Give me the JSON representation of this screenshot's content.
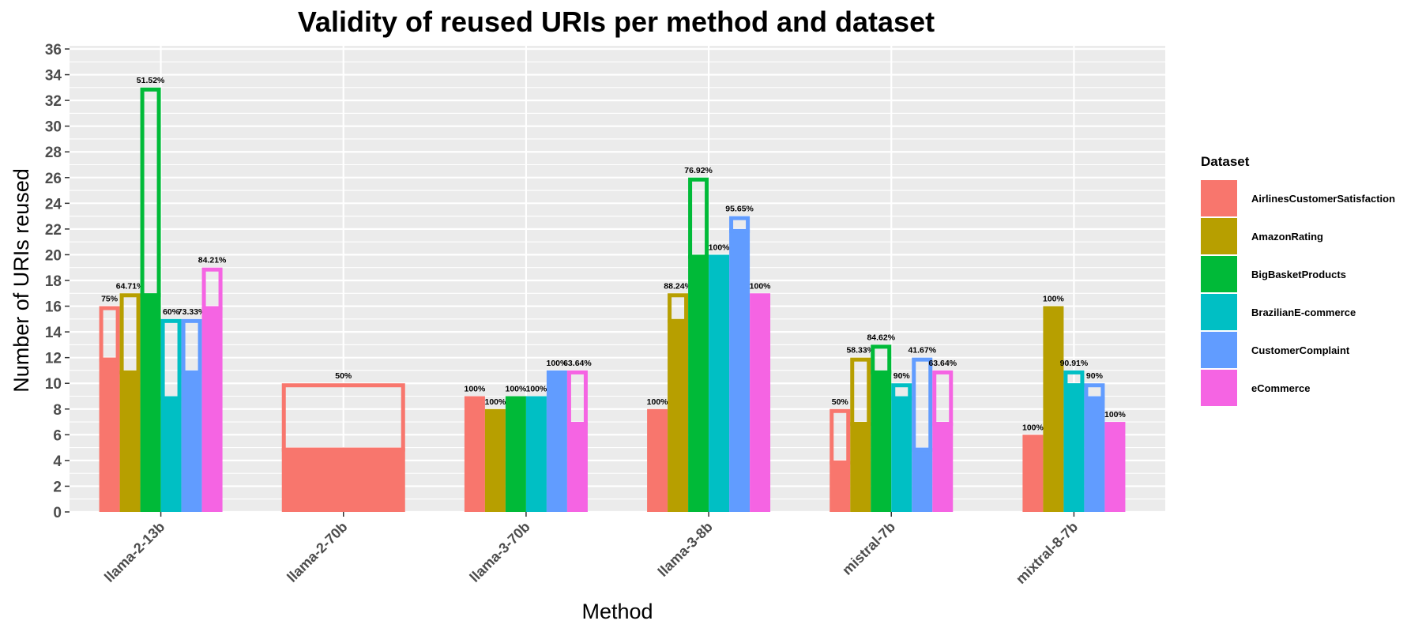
{
  "chart_data": {
    "type": "bar",
    "title": "Validity of reused URIs per method and dataset",
    "xlabel": "Method",
    "ylabel": "Number of URIs reused",
    "ylim": [
      0,
      36
    ],
    "y_ticks": [
      0,
      2,
      4,
      6,
      8,
      10,
      12,
      14,
      16,
      18,
      20,
      22,
      24,
      26,
      28,
      30,
      32,
      34,
      36
    ],
    "grid": true,
    "legend": {
      "title": "Dataset",
      "position": "right",
      "entries": [
        "AirlinesCustomerSatisfaction",
        "AmazonRating",
        "BigBasketProducts",
        "BrazilianE-commerce",
        "CustomerComplaint",
        "eCommerce"
      ]
    },
    "colors": {
      "AirlinesCustomerSatisfaction": "#F8766D",
      "AmazonRating": "#B79F00",
      "BigBasketProducts": "#00BA38",
      "BrazilianE-commerce": "#00BFC4",
      "CustomerComplaint": "#619CFF",
      "eCommerce": "#F564E3"
    },
    "categories": [
      "llama-2-13b",
      "llama-2-70b",
      "llama-3-70b",
      "llama-3-8b",
      "mistral-7b",
      "mixtral-8-7b"
    ],
    "groups": [
      {
        "method": "llama-2-13b",
        "bars": [
          {
            "dataset": "AirlinesCustomerSatisfaction",
            "total": 16,
            "valid": 12,
            "label": "75%"
          },
          {
            "dataset": "AmazonRating",
            "total": 17,
            "valid": 11,
            "label": "64.71%"
          },
          {
            "dataset": "BigBasketProducts",
            "total": 33,
            "valid": 17,
            "label": "51.52%"
          },
          {
            "dataset": "BrazilianE-commerce",
            "total": 15,
            "valid": 9,
            "label": "60%"
          },
          {
            "dataset": "CustomerComplaint",
            "total": 15,
            "valid": 11,
            "label": "73.33%"
          },
          {
            "dataset": "eCommerce",
            "total": 19,
            "valid": 16,
            "label": "84.21%"
          }
        ]
      },
      {
        "method": "llama-2-70b",
        "bars": [
          {
            "dataset": "AirlinesCustomerSatisfaction",
            "total": 10,
            "valid": 5,
            "label": "50%"
          }
        ]
      },
      {
        "method": "llama-3-70b",
        "bars": [
          {
            "dataset": "AirlinesCustomerSatisfaction",
            "total": 9,
            "valid": 9,
            "label": "100%"
          },
          {
            "dataset": "AmazonRating",
            "total": 8,
            "valid": 8,
            "label": "100%"
          },
          {
            "dataset": "BigBasketProducts",
            "total": 9,
            "valid": 9,
            "label": "100%"
          },
          {
            "dataset": "BrazilianE-commerce",
            "total": 9,
            "valid": 9,
            "label": "100%"
          },
          {
            "dataset": "CustomerComplaint",
            "total": 11,
            "valid": 11,
            "label": "100%"
          },
          {
            "dataset": "eCommerce",
            "total": 11,
            "valid": 7,
            "label": "63.64%"
          }
        ]
      },
      {
        "method": "llama-3-8b",
        "bars": [
          {
            "dataset": "AirlinesCustomerSatisfaction",
            "total": 8,
            "valid": 8,
            "label": "100%"
          },
          {
            "dataset": "AmazonRating",
            "total": 17,
            "valid": 15,
            "label": "88.24%"
          },
          {
            "dataset": "BigBasketProducts",
            "total": 26,
            "valid": 20,
            "label": "76.92%"
          },
          {
            "dataset": "BrazilianE-commerce",
            "total": 20,
            "valid": 20,
            "label": "100%"
          },
          {
            "dataset": "CustomerComplaint",
            "total": 23,
            "valid": 22,
            "label": "95.65%"
          },
          {
            "dataset": "eCommerce",
            "total": 17,
            "valid": 17,
            "label": "100%"
          }
        ]
      },
      {
        "method": "mistral-7b",
        "bars": [
          {
            "dataset": "AirlinesCustomerSatisfaction",
            "total": 8,
            "valid": 4,
            "label": "50%"
          },
          {
            "dataset": "AmazonRating",
            "total": 12,
            "valid": 7,
            "label": "58.33%"
          },
          {
            "dataset": "BigBasketProducts",
            "total": 13,
            "valid": 11,
            "label": "84.62%"
          },
          {
            "dataset": "BrazilianE-commerce",
            "total": 10,
            "valid": 9,
            "label": "90%"
          },
          {
            "dataset": "CustomerComplaint",
            "total": 12,
            "valid": 5,
            "label": "41.67%"
          },
          {
            "dataset": "eCommerce",
            "total": 11,
            "valid": 7,
            "label": "63.64%"
          }
        ]
      },
      {
        "method": "mixtral-8-7b",
        "bars": [
          {
            "dataset": "AirlinesCustomerSatisfaction",
            "total": 6,
            "valid": 6,
            "label": "100%"
          },
          {
            "dataset": "AmazonRating",
            "total": 16,
            "valid": 16,
            "label": "100%"
          },
          {
            "dataset": "BrazilianE-commerce",
            "total": 11,
            "valid": 10,
            "label": "90.91%"
          },
          {
            "dataset": "CustomerComplaint",
            "total": 10,
            "valid": 9,
            "label": "90%"
          },
          {
            "dataset": "eCommerce",
            "total": 7,
            "valid": 7,
            "label": "100%"
          }
        ]
      }
    ]
  }
}
